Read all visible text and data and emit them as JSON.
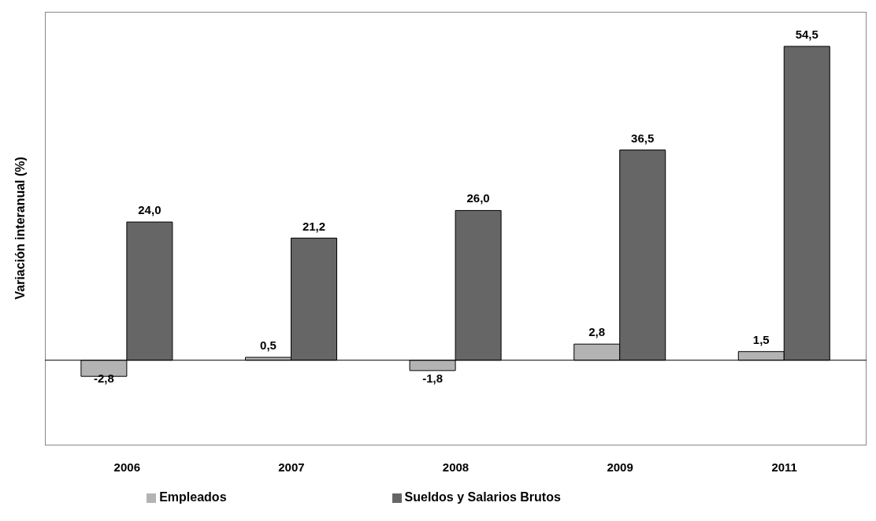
{
  "chart_data": {
    "type": "bar",
    "ylabel": "Variación interanual (%)",
    "categories": [
      "2006",
      "2007",
      "2008",
      "2009",
      "2011"
    ],
    "series": [
      {
        "name": "Empleados",
        "color": "#b3b3b3",
        "values": [
          -2.8,
          0.5,
          -1.8,
          2.8,
          1.5
        ],
        "value_labels": [
          "-2,8",
          "0,5",
          "-1,8",
          "2,8",
          "1,5"
        ]
      },
      {
        "name": "Sueldos y Salarios Brutos",
        "color": "#666666",
        "values": [
          24.0,
          21.2,
          26.0,
          36.5,
          54.5
        ],
        "value_labels": [
          "24,0",
          "21,2",
          "26,0",
          "36,5",
          "54,5"
        ]
      }
    ],
    "legend": "bottom",
    "grid": false
  }
}
